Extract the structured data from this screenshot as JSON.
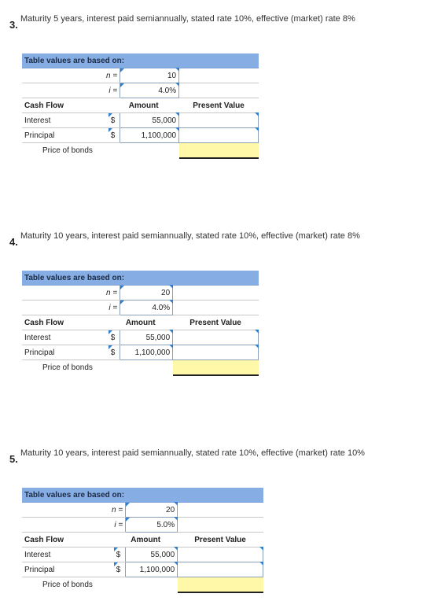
{
  "problems": [
    {
      "number": "3.",
      "text": "Maturity 5 years, interest paid semiannually, stated rate 10%, effective (market) rate 8%",
      "header": "Table values are based on:",
      "n_label": "n =",
      "n_value": "10",
      "i_label": "i =",
      "i_value": "4.0%",
      "col_cash_flow": "Cash Flow",
      "col_amount": "Amount",
      "col_pv": "Present Value",
      "interest_label": "Interest",
      "interest_currency": "$",
      "interest_amount": "55,000",
      "principal_label": "Principal",
      "principal_currency": "$",
      "principal_amount": "1,100,000",
      "price_label": "Price of bonds"
    },
    {
      "number": "4.",
      "text": "Maturity 10 years, interest paid semiannually, stated rate 10%, effective (market) rate 8%",
      "header": "Table values are based on:",
      "n_label": "n =",
      "n_value": "20",
      "i_label": "i =",
      "i_value": "4.0%",
      "col_cash_flow": "Cash Flow",
      "col_amount": "Amount",
      "col_pv": "Present Value",
      "interest_label": "Interest",
      "interest_currency": "$",
      "interest_amount": "55,000",
      "principal_label": "Principal",
      "principal_currency": "$",
      "principal_amount": "1,100,000",
      "price_label": "Price of bonds"
    },
    {
      "number": "5.",
      "text": "Maturity 10 years, interest paid semiannually, stated rate 10%, effective (market) rate 10%",
      "header": "Table values are based on:",
      "n_label": "n =",
      "n_value": "20",
      "i_label": "i =",
      "i_value": "5.0%",
      "col_cash_flow": "Cash Flow",
      "col_amount": "Amount",
      "col_pv": "Present Value",
      "interest_label": "Interest",
      "interest_currency": "$",
      "interest_amount": "55,000",
      "principal_label": "Principal",
      "principal_currency": "$",
      "principal_amount": "1,100,000",
      "price_label": "Price of bonds"
    }
  ]
}
